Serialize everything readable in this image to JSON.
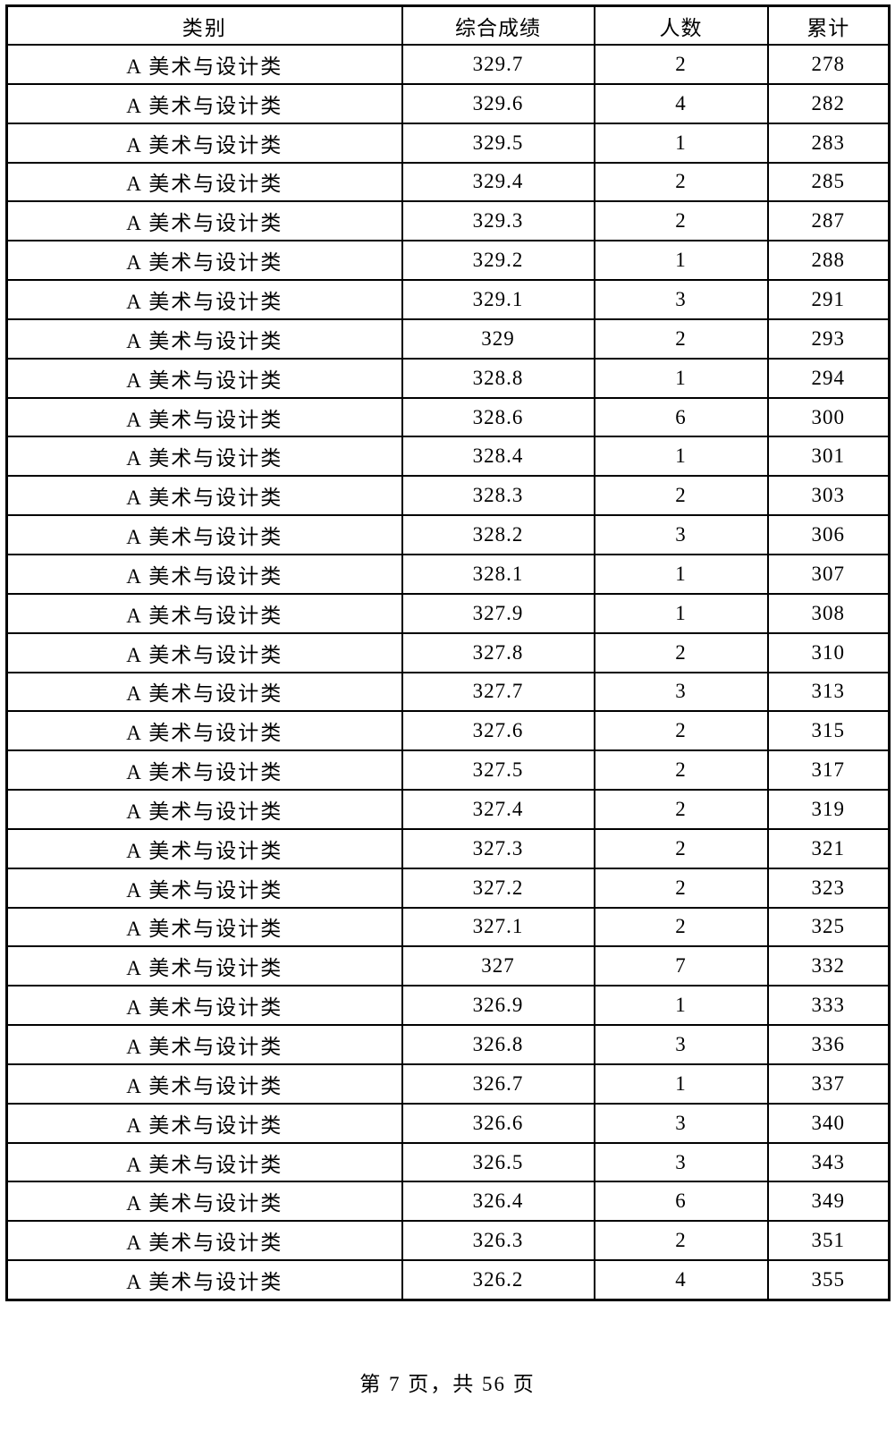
{
  "colors": {
    "page_background": "#ffffff",
    "text": "#000000",
    "border": "#000000"
  },
  "table": {
    "headers": [
      "类别",
      "综合成绩",
      "人数",
      "累计"
    ],
    "rows": [
      [
        "A 美术与设计类",
        "329.7",
        "2",
        "278"
      ],
      [
        "A 美术与设计类",
        "329.6",
        "4",
        "282"
      ],
      [
        "A 美术与设计类",
        "329.5",
        "1",
        "283"
      ],
      [
        "A 美术与设计类",
        "329.4",
        "2",
        "285"
      ],
      [
        "A 美术与设计类",
        "329.3",
        "2",
        "287"
      ],
      [
        "A 美术与设计类",
        "329.2",
        "1",
        "288"
      ],
      [
        "A 美术与设计类",
        "329.1",
        "3",
        "291"
      ],
      [
        "A 美术与设计类",
        "329",
        "2",
        "293"
      ],
      [
        "A 美术与设计类",
        "328.8",
        "1",
        "294"
      ],
      [
        "A 美术与设计类",
        "328.6",
        "6",
        "300"
      ],
      [
        "A 美术与设计类",
        "328.4",
        "1",
        "301"
      ],
      [
        "A 美术与设计类",
        "328.3",
        "2",
        "303"
      ],
      [
        "A 美术与设计类",
        "328.2",
        "3",
        "306"
      ],
      [
        "A 美术与设计类",
        "328.1",
        "1",
        "307"
      ],
      [
        "A 美术与设计类",
        "327.9",
        "1",
        "308"
      ],
      [
        "A 美术与设计类",
        "327.8",
        "2",
        "310"
      ],
      [
        "A 美术与设计类",
        "327.7",
        "3",
        "313"
      ],
      [
        "A 美术与设计类",
        "327.6",
        "2",
        "315"
      ],
      [
        "A 美术与设计类",
        "327.5",
        "2",
        "317"
      ],
      [
        "A 美术与设计类",
        "327.4",
        "2",
        "319"
      ],
      [
        "A 美术与设计类",
        "327.3",
        "2",
        "321"
      ],
      [
        "A 美术与设计类",
        "327.2",
        "2",
        "323"
      ],
      [
        "A 美术与设计类",
        "327.1",
        "2",
        "325"
      ],
      [
        "A 美术与设计类",
        "327",
        "7",
        "332"
      ],
      [
        "A 美术与设计类",
        "326.9",
        "1",
        "333"
      ],
      [
        "A 美术与设计类",
        "326.8",
        "3",
        "336"
      ],
      [
        "A 美术与设计类",
        "326.7",
        "1",
        "337"
      ],
      [
        "A 美术与设计类",
        "326.6",
        "3",
        "340"
      ],
      [
        "A 美术与设计类",
        "326.5",
        "3",
        "343"
      ],
      [
        "A 美术与设计类",
        "326.4",
        "6",
        "349"
      ],
      [
        "A 美术与设计类",
        "326.3",
        "2",
        "351"
      ],
      [
        "A 美术与设计类",
        "326.2",
        "4",
        "355"
      ]
    ]
  },
  "footer": {
    "page_label": "第 7 页，共 56 页"
  }
}
